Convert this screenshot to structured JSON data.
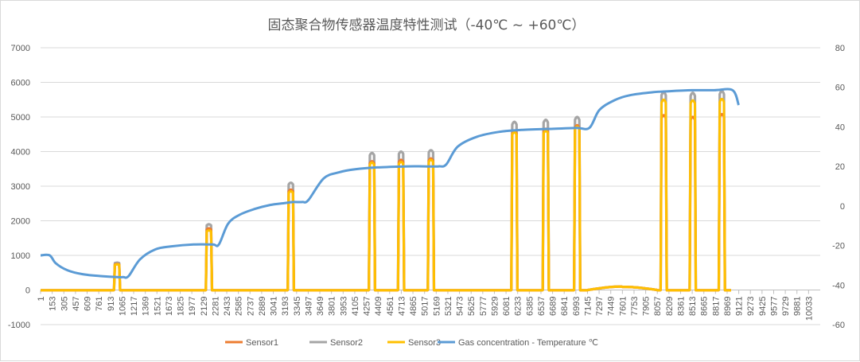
{
  "chart_data": {
    "type": "line",
    "title": "固态聚合物传感器温度特性测试（-40℃ ~ +60℃）",
    "x_ticks": [
      "1",
      "153",
      "305",
      "457",
      "609",
      "761",
      "913",
      "1065",
      "1217",
      "1369",
      "1521",
      "1673",
      "1825",
      "1977",
      "2129",
      "2281",
      "2433",
      "2585",
      "2737",
      "2889",
      "3041",
      "3193",
      "3345",
      "3497",
      "3649",
      "3801",
      "3953",
      "4105",
      "4257",
      "4409",
      "4561",
      "4713",
      "4865",
      "5017",
      "5169",
      "5321",
      "5473",
      "5625",
      "5777",
      "5929",
      "6081",
      "6233",
      "6385",
      "6537",
      "6689",
      "6841",
      "6993",
      "7145",
      "7297",
      "7449",
      "7601",
      "7753",
      "7905",
      "8057",
      "8209",
      "8361",
      "8513",
      "8665",
      "8817",
      "8969",
      "9121",
      "9273",
      "9425",
      "9577",
      "9729",
      "9881",
      "10033"
    ],
    "x_range": [
      1,
      10185
    ],
    "y_left": {
      "min": -1000,
      "max": 7000,
      "step": 1000,
      "ticks": [
        "-1000",
        "0",
        "1000",
        "2000",
        "3000",
        "4000",
        "5000",
        "6000",
        "7000"
      ]
    },
    "y_right": {
      "min": -60,
      "max": 80,
      "step": 20,
      "ticks": [
        "-60",
        "-40",
        "-20",
        "0",
        "20",
        "40",
        "60",
        "80"
      ]
    },
    "pulses": [
      {
        "center": 1000,
        "width": 80,
        "s1": 750,
        "s2": 790,
        "s3": 740
      },
      {
        "center": 2200,
        "width": 80,
        "s1": 1780,
        "s2": 1900,
        "s3": 1720
      },
      {
        "center": 3270,
        "width": 80,
        "s1": 2900,
        "s2": 3100,
        "s3": 2850
      },
      {
        "center": 4330,
        "width": 80,
        "s1": 3720,
        "s2": 3960,
        "s3": 3680
      },
      {
        "center": 4710,
        "width": 80,
        "s1": 3760,
        "s2": 4000,
        "s3": 3700
      },
      {
        "center": 5100,
        "width": 80,
        "s1": 3800,
        "s2": 4040,
        "s3": 3760
      },
      {
        "center": 6190,
        "width": 80,
        "s1": 4600,
        "s2": 4860,
        "s3": 4560
      },
      {
        "center": 6600,
        "width": 80,
        "s1": 4660,
        "s2": 4920,
        "s3": 4600
      },
      {
        "center": 7010,
        "width": 80,
        "s1": 4760,
        "s2": 5000,
        "s3": 4720
      },
      {
        "center": 8140,
        "width": 80,
        "s1": 5050,
        "s2": 5720,
        "s3": 5500
      },
      {
        "center": 8520,
        "width": 80,
        "s1": 5000,
        "s2": 5700,
        "s3": 5480
      },
      {
        "center": 8900,
        "width": 80,
        "s1": 5080,
        "s2": 5750,
        "s3": 5520
      }
    ],
    "baseline_bump": {
      "from": 7150,
      "to": 8060,
      "peak_x": 7600,
      "peak_value": 100
    },
    "temperature_series": {
      "x": [
        1,
        120,
        200,
        350,
        550,
        800,
        1000,
        1080,
        1150,
        1300,
        1500,
        1700,
        2000,
        2250,
        2330,
        2450,
        2600,
        2800,
        3000,
        3200,
        3300,
        3420,
        3500,
        3700,
        3900,
        4100,
        4400,
        4800,
        5000,
        5200,
        5300,
        5450,
        5700,
        6000,
        6300,
        6700,
        7000,
        7170,
        7300,
        7500,
        7700,
        8000,
        8200,
        8500,
        8800,
        9040,
        9120
      ],
      "y": [
        -25,
        -25,
        -29,
        -32.5,
        -34.5,
        -35.5,
        -36,
        -36,
        -35.5,
        -27,
        -22,
        -20.5,
        -19.5,
        -19.5,
        -19.5,
        -9,
        -4.5,
        -1.5,
        0.5,
        1.5,
        2,
        2,
        3,
        14,
        17,
        18.5,
        19.5,
        20,
        20,
        20,
        21,
        30,
        35,
        37.5,
        38.5,
        39,
        39.5,
        39.5,
        48.5,
        53.5,
        56,
        57.5,
        58,
        58.5,
        58.5,
        58.5,
        51
      ]
    },
    "series": [
      {
        "name": "Sensor1",
        "color": "#ed7d31",
        "axis": "left"
      },
      {
        "name": "Sensor2",
        "color": "#a5a5a5",
        "axis": "left"
      },
      {
        "name": "Sensor3",
        "color": "#ffc000",
        "axis": "left"
      },
      {
        "name": "Gas concentration - Temperature ℃",
        "color": "#5b9bd5",
        "axis": "right"
      }
    ],
    "legend_position": "bottom"
  }
}
